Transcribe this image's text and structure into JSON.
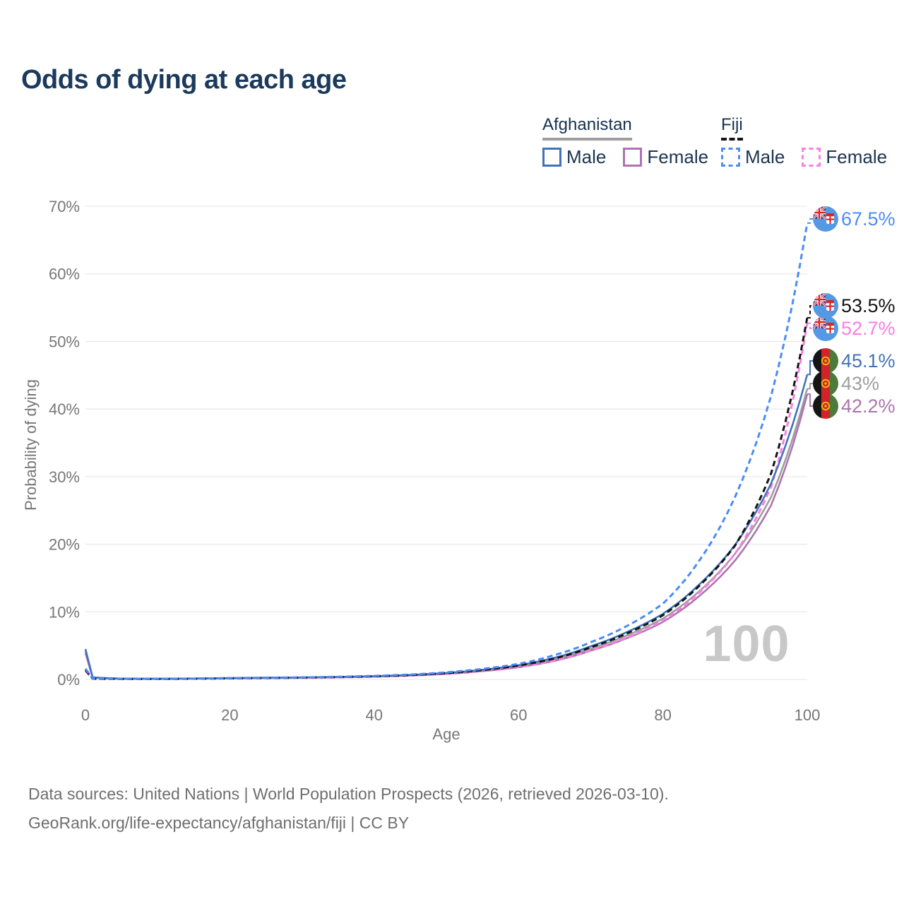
{
  "title": "Odds of dying at each age",
  "legend": {
    "afghanistan": {
      "title": "Afghanistan",
      "male_label": "Male",
      "female_label": "Female",
      "line_color": "#9e9e9e",
      "male_color": "#4273b8",
      "female_color": "#ad74b0",
      "line_style": "solid"
    },
    "fiji": {
      "title": "Fiji",
      "male_label": "Male",
      "female_label": "Female",
      "line_color": "#141414",
      "male_color": "#4b8cf5",
      "female_color": "#fb7de6",
      "line_style": "dashed"
    }
  },
  "chart_data": {
    "type": "line",
    "title": "Odds of dying at each age",
    "xlabel": "Age",
    "ylabel": "Probability of dying",
    "xlim": [
      0,
      100
    ],
    "ylim": [
      0,
      70
    ],
    "grid": "horizontal",
    "legend_position": "top-right",
    "watermark": "100",
    "x_ticks": [
      {
        "v": 0,
        "label": "0"
      },
      {
        "v": 20,
        "label": "20"
      },
      {
        "v": 40,
        "label": "40"
      },
      {
        "v": 60,
        "label": "60"
      },
      {
        "v": 80,
        "label": "80"
      },
      {
        "v": 100,
        "label": "100"
      }
    ],
    "y_ticks": [
      {
        "v": 0,
        "label": "0%"
      },
      {
        "v": 10,
        "label": "10%"
      },
      {
        "v": 20,
        "label": "20%"
      },
      {
        "v": 30,
        "label": "30%"
      },
      {
        "v": 40,
        "label": "40%"
      },
      {
        "v": 50,
        "label": "50%"
      },
      {
        "v": 60,
        "label": "60%"
      },
      {
        "v": 70,
        "label": "70%"
      }
    ],
    "series": [
      {
        "key": "afg_total",
        "name": "Afghanistan (both sexes)",
        "country": "Afghanistan",
        "sex": "total",
        "color": "#9e9e9e",
        "dashed": false,
        "end_label": "43%",
        "flag": "afghanistan",
        "points": [
          [
            0,
            4.2
          ],
          [
            1,
            0.28
          ],
          [
            5,
            0.11
          ],
          [
            10,
            0.09
          ],
          [
            15,
            0.13
          ],
          [
            20,
            0.18
          ],
          [
            25,
            0.23
          ],
          [
            30,
            0.27
          ],
          [
            35,
            0.34
          ],
          [
            40,
            0.44
          ],
          [
            45,
            0.61
          ],
          [
            50,
            0.88
          ],
          [
            55,
            1.32
          ],
          [
            60,
            1.95
          ],
          [
            65,
            2.95
          ],
          [
            70,
            4.55
          ],
          [
            75,
            6.5
          ],
          [
            80,
            9.0
          ],
          [
            85,
            13.0
          ],
          [
            90,
            18.6
          ],
          [
            95,
            27.0
          ],
          [
            100,
            43.0
          ]
        ]
      },
      {
        "key": "afg_female",
        "name": "Afghanistan Female",
        "country": "Afghanistan",
        "sex": "female",
        "color": "#ad74b0",
        "dashed": false,
        "end_label": "42.2%",
        "flag": "afghanistan",
        "points": [
          [
            0,
            3.9
          ],
          [
            1,
            0.26
          ],
          [
            5,
            0.1
          ],
          [
            10,
            0.08
          ],
          [
            15,
            0.12
          ],
          [
            20,
            0.16
          ],
          [
            25,
            0.21
          ],
          [
            30,
            0.25
          ],
          [
            35,
            0.32
          ],
          [
            40,
            0.41
          ],
          [
            45,
            0.56
          ],
          [
            50,
            0.81
          ],
          [
            55,
            1.22
          ],
          [
            60,
            1.8
          ],
          [
            65,
            2.75
          ],
          [
            70,
            4.25
          ],
          [
            75,
            6.1
          ],
          [
            80,
            8.5
          ],
          [
            85,
            12.3
          ],
          [
            90,
            17.6
          ],
          [
            95,
            25.8
          ],
          [
            100,
            42.2
          ]
        ]
      },
      {
        "key": "fiji_female",
        "name": "Fiji Female",
        "country": "Fiji",
        "sex": "female",
        "color": "#fb7de6",
        "dashed": true,
        "end_label": "52.7%",
        "flag": "fiji",
        "points": [
          [
            0,
            1.2
          ],
          [
            1,
            0.09
          ],
          [
            5,
            0.05
          ],
          [
            10,
            0.05
          ],
          [
            15,
            0.09
          ],
          [
            20,
            0.15
          ],
          [
            25,
            0.2
          ],
          [
            30,
            0.24
          ],
          [
            35,
            0.31
          ],
          [
            40,
            0.41
          ],
          [
            45,
            0.57
          ],
          [
            50,
            0.84
          ],
          [
            55,
            1.25
          ],
          [
            60,
            1.85
          ],
          [
            65,
            2.8
          ],
          [
            70,
            4.3
          ],
          [
            75,
            6.2
          ],
          [
            80,
            8.7
          ],
          [
            85,
            12.8
          ],
          [
            90,
            18.6
          ],
          [
            95,
            28.5
          ],
          [
            100,
            52.7
          ]
        ]
      },
      {
        "key": "afg_male",
        "name": "Afghanistan Male",
        "country": "Afghanistan",
        "sex": "male",
        "color": "#4273b8",
        "dashed": false,
        "end_label": "45.1%",
        "flag": "afghanistan",
        "points": [
          [
            0,
            4.5
          ],
          [
            1,
            0.3
          ],
          [
            5,
            0.12
          ],
          [
            10,
            0.1
          ],
          [
            15,
            0.14
          ],
          [
            20,
            0.2
          ],
          [
            25,
            0.25
          ],
          [
            30,
            0.29
          ],
          [
            35,
            0.37
          ],
          [
            40,
            0.48
          ],
          [
            45,
            0.66
          ],
          [
            50,
            0.95
          ],
          [
            55,
            1.42
          ],
          [
            60,
            2.1
          ],
          [
            65,
            3.2
          ],
          [
            70,
            4.9
          ],
          [
            75,
            7.0
          ],
          [
            80,
            9.7
          ],
          [
            85,
            14.0
          ],
          [
            90,
            19.9
          ],
          [
            95,
            29.0
          ],
          [
            100,
            45.1
          ]
        ]
      },
      {
        "key": "fiji_total",
        "name": "Fiji (both sexes)",
        "country": "Fiji",
        "sex": "total",
        "color": "#141414",
        "dashed": true,
        "end_label": "53.5%",
        "flag": "fiji",
        "points": [
          [
            0,
            1.4
          ],
          [
            1,
            0.1
          ],
          [
            5,
            0.06
          ],
          [
            10,
            0.06
          ],
          [
            15,
            0.1
          ],
          [
            20,
            0.17
          ],
          [
            25,
            0.22
          ],
          [
            30,
            0.27
          ],
          [
            35,
            0.35
          ],
          [
            40,
            0.46
          ],
          [
            45,
            0.64
          ],
          [
            50,
            0.93
          ],
          [
            55,
            1.38
          ],
          [
            60,
            2.05
          ],
          [
            65,
            3.1
          ],
          [
            70,
            4.75
          ],
          [
            75,
            6.8
          ],
          [
            80,
            9.5
          ],
          [
            85,
            13.8
          ],
          [
            90,
            19.8
          ],
          [
            95,
            30.5
          ],
          [
            100,
            53.5
          ]
        ]
      },
      {
        "key": "fiji_male",
        "name": "Fiji Male",
        "country": "Fiji",
        "sex": "male",
        "color": "#4b8cf5",
        "dashed": true,
        "end_label": "67.5%",
        "flag": "fiji",
        "points": [
          [
            0,
            1.6
          ],
          [
            1,
            0.12
          ],
          [
            5,
            0.07
          ],
          [
            10,
            0.07
          ],
          [
            15,
            0.12
          ],
          [
            20,
            0.2
          ],
          [
            25,
            0.25
          ],
          [
            30,
            0.3
          ],
          [
            35,
            0.4
          ],
          [
            40,
            0.52
          ],
          [
            45,
            0.72
          ],
          [
            50,
            1.05
          ],
          [
            55,
            1.55
          ],
          [
            60,
            2.3
          ],
          [
            65,
            3.6
          ],
          [
            70,
            5.5
          ],
          [
            75,
            7.9
          ],
          [
            80,
            11.2
          ],
          [
            85,
            17.5
          ],
          [
            90,
            27.0
          ],
          [
            95,
            42.0
          ],
          [
            100,
            67.5
          ]
        ]
      }
    ]
  },
  "footer": {
    "line1": "Data sources: United Nations | World Population Prospects (2026, retrieved 2026-03-10).",
    "line2": "GeoRank.org/life-expectancy/afghanistan/fiji | CC BY"
  },
  "colors": {
    "title": "#1b3a5c",
    "axis_text": "#767676",
    "gridline": "#e9e9e9",
    "watermark": "#c8c8c8",
    "footer_text": "#6e6e6e",
    "legend_text": "#1b3550"
  }
}
